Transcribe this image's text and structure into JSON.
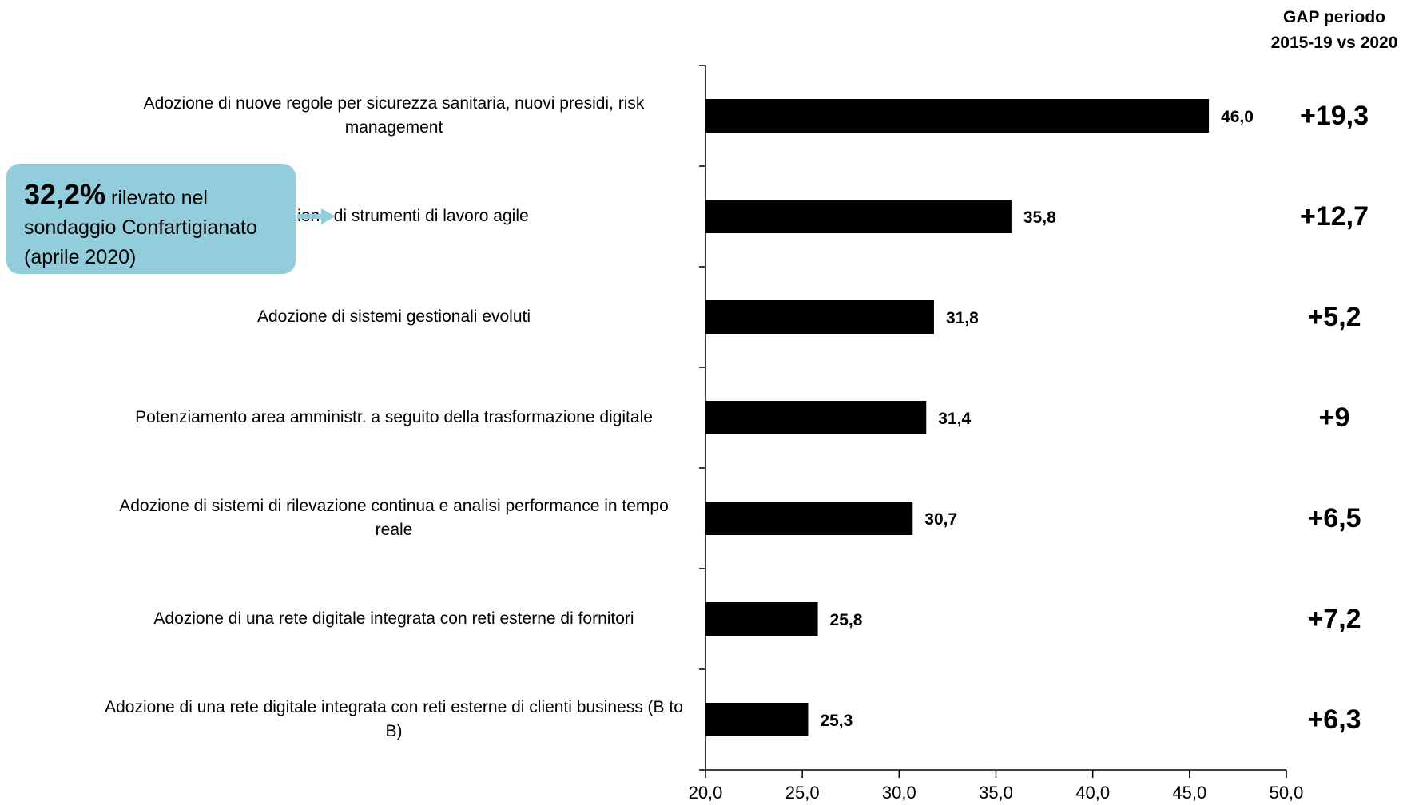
{
  "callout": {
    "percent": "32,2%",
    "text": "rilevato nel sondaggio Confartigianato (aprile 2020)"
  },
  "gap": {
    "header_line1": "GAP periodo",
    "header_line2": "2015-19 vs 2020",
    "values": [
      "+19,3",
      "+12,7",
      "+5,2",
      "+9",
      "+6,5",
      "+7,2",
      "+6,3"
    ]
  },
  "chart_data": {
    "type": "bar",
    "orientation": "horizontal",
    "categories": [
      "Adozione di nuove regole per sicurezza sanitaria, nuovi presidi, risk management",
      "Adozione di strumenti di lavoro agile",
      "Adozione di sistemi gestionali evoluti",
      "Potenziamento area amministr. a seguito della trasformazione digitale",
      "Adozione di sistemi di rilevazione continua e analisi  performance in tempo reale",
      "Adozione di una rete digitale integrata con reti esterne di fornitori",
      "Adozione di una rete digitale integrata con reti esterne di clienti business (B to B)"
    ],
    "values": [
      46.0,
      35.8,
      31.8,
      31.4,
      30.7,
      25.8,
      25.3
    ],
    "value_labels": [
      "46,0",
      "35,8",
      "31,8",
      "31,4",
      "30,7",
      "25,8",
      "25,3"
    ],
    "xlim": [
      20,
      50
    ],
    "xticks": [
      20,
      25,
      30,
      35,
      40,
      45,
      50
    ],
    "xtick_labels": [
      "20,0",
      "25,0",
      "30,0",
      "35,0",
      "40,0",
      "45,0",
      "50,0"
    ],
    "bar_color": "#000000",
    "grid": false,
    "title": "",
    "xlabel": "",
    "ylabel": ""
  },
  "colors": {
    "callout_bg": "#92cddc",
    "arrow": "#92cddc",
    "accent_orange": "#e36c09"
  }
}
